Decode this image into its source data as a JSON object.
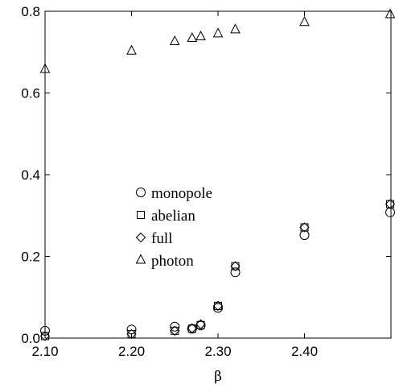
{
  "chart_data": {
    "type": "scatter",
    "xlabel": "β",
    "ylabel": "",
    "xlim": [
      2.1,
      2.5
    ],
    "ylim": [
      0.0,
      0.8
    ],
    "x_ticks": [
      {
        "value": 2.1,
        "label": "2.10"
      },
      {
        "value": 2.2,
        "label": "2.20"
      },
      {
        "value": 2.3,
        "label": "2.30"
      },
      {
        "value": 2.4,
        "label": "2.40"
      }
    ],
    "y_ticks": [
      {
        "value": 0.0,
        "label": "0.0"
      },
      {
        "value": 0.2,
        "label": "0.2"
      },
      {
        "value": 0.4,
        "label": "0.4"
      },
      {
        "value": 0.6,
        "label": "0.6"
      },
      {
        "value": 0.8,
        "label": "0.8"
      }
    ],
    "grid": false,
    "legend_position": "center",
    "series": [
      {
        "name": "monopole",
        "marker": "circle",
        "x": [
          2.1,
          2.2,
          2.25,
          2.27,
          2.28,
          2.3,
          2.32,
          2.4,
          2.5
        ],
        "y": [
          0.018,
          0.021,
          0.028,
          0.023,
          0.031,
          0.074,
          0.161,
          0.252,
          0.308
        ]
      },
      {
        "name": "abelian",
        "marker": "square",
        "x": [
          2.1,
          2.2,
          2.25,
          2.27,
          2.28,
          2.3,
          2.32,
          2.4,
          2.5
        ],
        "y": [
          0.005,
          0.01,
          0.018,
          0.023,
          0.032,
          0.079,
          0.176,
          0.271,
          0.328
        ]
      },
      {
        "name": "full",
        "marker": "diamond",
        "x": [
          2.1,
          2.2,
          2.25,
          2.27,
          2.28,
          2.3,
          2.32,
          2.4,
          2.5
        ],
        "y": [
          0.005,
          0.01,
          0.018,
          0.024,
          0.034,
          0.079,
          0.176,
          0.271,
          0.328
        ]
      },
      {
        "name": "photon",
        "marker": "triangle",
        "x": [
          2.1,
          2.2,
          2.25,
          2.27,
          2.28,
          2.3,
          2.32,
          2.4,
          2.5
        ],
        "y": [
          0.658,
          0.703,
          0.726,
          0.734,
          0.738,
          0.745,
          0.755,
          0.773,
          0.792
        ]
      }
    ]
  }
}
